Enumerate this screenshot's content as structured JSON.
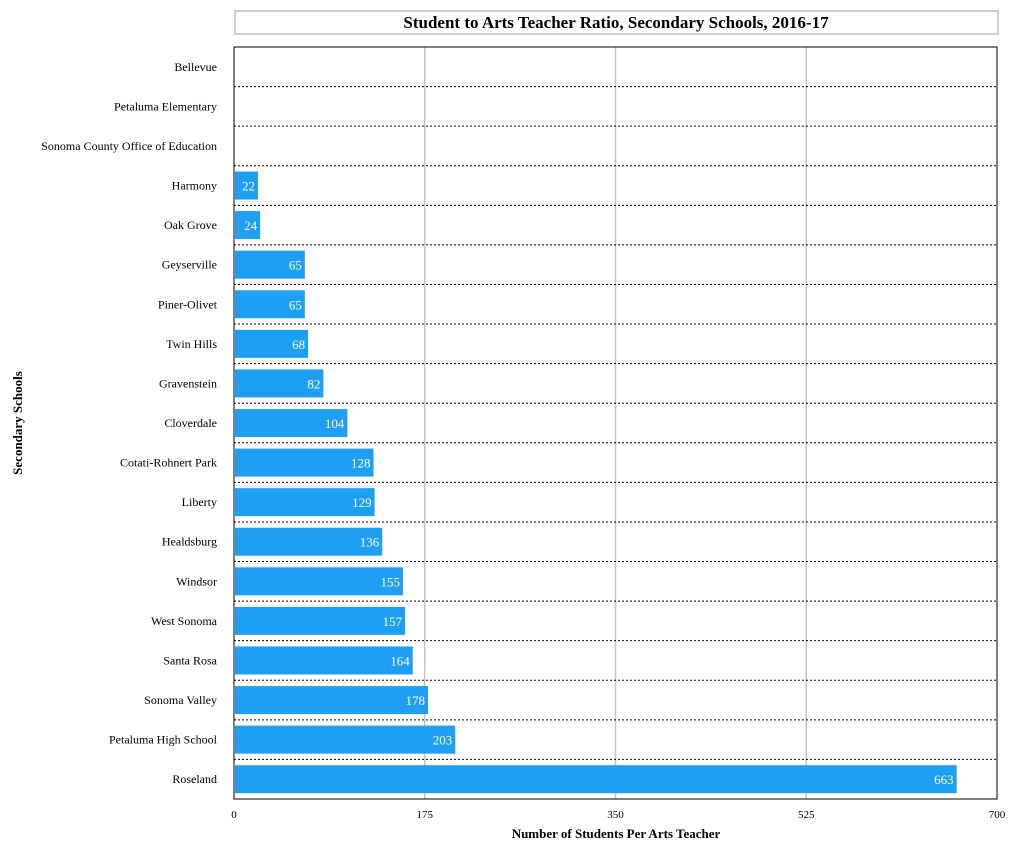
{
  "chart_data": {
    "type": "bar",
    "orientation": "horizontal",
    "title": "Student to Arts Teacher Ratio, Secondary Schools, 2016-17",
    "xlabel": "Number of Students Per Arts Teacher",
    "ylabel": "Secondary Schools",
    "xlim": [
      0,
      700
    ],
    "xticks": [
      "0",
      "175",
      "350",
      "525",
      "700"
    ],
    "grid": true,
    "bar_color": "#1e9ff2",
    "categories": [
      "Bellevue",
      "Petaluma Elementary",
      "Sonoma County Office of Education",
      "Harmony",
      "Oak Grove",
      "Geyserville",
      "Piner-Olivet",
      "Twin Hills",
      "Gravenstein",
      "Cloverdale",
      "Cotati-Rohnert Park",
      "Liberty",
      "Healdsburg",
      "Windsor",
      "West Sonoma",
      "Santa Rosa",
      "Sonoma Valley",
      "Petaluma High School",
      "Roseland"
    ],
    "values": [
      null,
      null,
      null,
      22,
      24,
      65,
      65,
      68,
      82,
      104,
      128,
      129,
      136,
      155,
      157,
      164,
      178,
      203,
      663
    ],
    "data_labels": [
      "",
      "",
      "",
      "22",
      "24",
      "65",
      "65",
      "68",
      "82",
      "104",
      "128",
      "129",
      "136",
      "155",
      "157",
      "164",
      "178",
      "203",
      "663"
    ]
  }
}
